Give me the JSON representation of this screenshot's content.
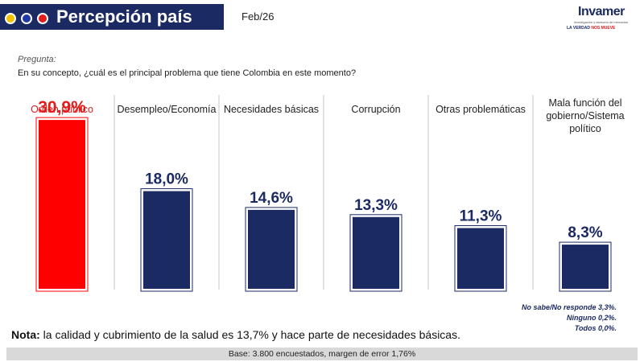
{
  "header": {
    "title": "Percepción país",
    "date": "Feb/26",
    "logo": {
      "name": "Invamer",
      "sub": "investigación y asesoría de mercados",
      "tagline_dark": "LA VERDAD",
      "tagline_red": "NOS MUEVE"
    },
    "colors": {
      "title_bg": "#1b2a63",
      "dot_yellow": "#f2c200",
      "dot_blue": "#1f3aa8",
      "dot_red": "#e21b1b"
    }
  },
  "question": {
    "label": "Pregunta:",
    "text": "En su concepto, ¿cuál es el principal problema que tiene Colombia en este momento?"
  },
  "chart_data": {
    "type": "bar",
    "categories": [
      "Orden público",
      "Desempleo/Economía",
      "Necesidades básicas",
      "Corrupción",
      "Otras problemáticas",
      "Mala función del gobierno/Sistema político"
    ],
    "values": [
      30.9,
      18.0,
      14.6,
      13.3,
      11.3,
      8.3
    ],
    "data_labels": [
      "30,9%",
      "18,0%",
      "14,6%",
      "13,3%",
      "11,3%",
      "8,3%"
    ],
    "highlight_index": 0,
    "colors": {
      "highlight": "#ff0000",
      "default": "#1b2a63",
      "highlight_label": "#e21b1b",
      "default_label": "#1b2a63"
    },
    "ylim": [
      0,
      35
    ],
    "grid": false,
    "legend": "none"
  },
  "footnote": {
    "lines": [
      "No sabe/No responde 3,3%.",
      "Ninguno 0,2%.",
      "Todos 0,0%."
    ]
  },
  "note": {
    "label": "Nota:",
    "text": " la calidad y cubrimiento de la salud es 13,7% y hace parte de necesidades básicas."
  },
  "base": {
    "text": "Base: 3.800 encuestados, margen de error 1,76%"
  }
}
